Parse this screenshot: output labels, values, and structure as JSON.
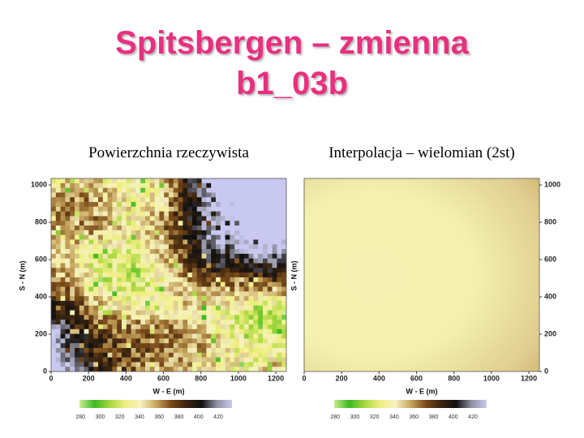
{
  "title": "Spitsbergen – zmienna b1_03b",
  "chart_data": [
    {
      "type": "heatmap",
      "caption": "Powierzchnia rzeczywista",
      "x_label": "W - E (m)",
      "y_label": "S - N (m)",
      "xlim": [
        0,
        1256
      ],
      "ylim": [
        0,
        1035
      ],
      "xticks": [
        0,
        200,
        400,
        600,
        800,
        1000,
        1200
      ],
      "yticks": [
        0,
        200,
        400,
        600,
        800,
        1000
      ],
      "y_axis_side": "left",
      "colorbar": {
        "lim": [
          279,
          434
        ],
        "ticks": [
          280,
          300,
          320,
          340,
          360,
          380,
          400,
          420
        ],
        "colors": [
          "#c8ec90",
          "#3cb820",
          "#a8d840",
          "#f0ee80",
          "#f6f2c0",
          "#c8a860",
          "#7a4a18",
          "#3a2410",
          "#101010",
          "#9090a0",
          "#c8c8f0"
        ]
      }
    },
    {
      "type": "surface",
      "caption": "Interpolacja – wielomian (2st)",
      "x_label": "W - E (m)",
      "y_label": "S - N (m)",
      "xlim": [
        0,
        1256
      ],
      "ylim": [
        0,
        1035
      ],
      "xticks": [
        0,
        200,
        400,
        600,
        800,
        1000,
        1200
      ],
      "yticks": [
        0,
        200,
        400,
        600,
        800,
        1000
      ],
      "y_axis_side": "right",
      "colorbar": {
        "lim": [
          279,
          434
        ],
        "ticks": [
          280,
          300,
          320,
          340,
          360,
          380,
          400,
          420
        ],
        "colors": [
          "#c8ec90",
          "#3cb820",
          "#a8d840",
          "#f0ee80",
          "#f6f2c0",
          "#c8a860",
          "#7a4a18",
          "#3a2410",
          "#101010",
          "#9090a0",
          "#c8c8f0"
        ]
      }
    }
  ]
}
